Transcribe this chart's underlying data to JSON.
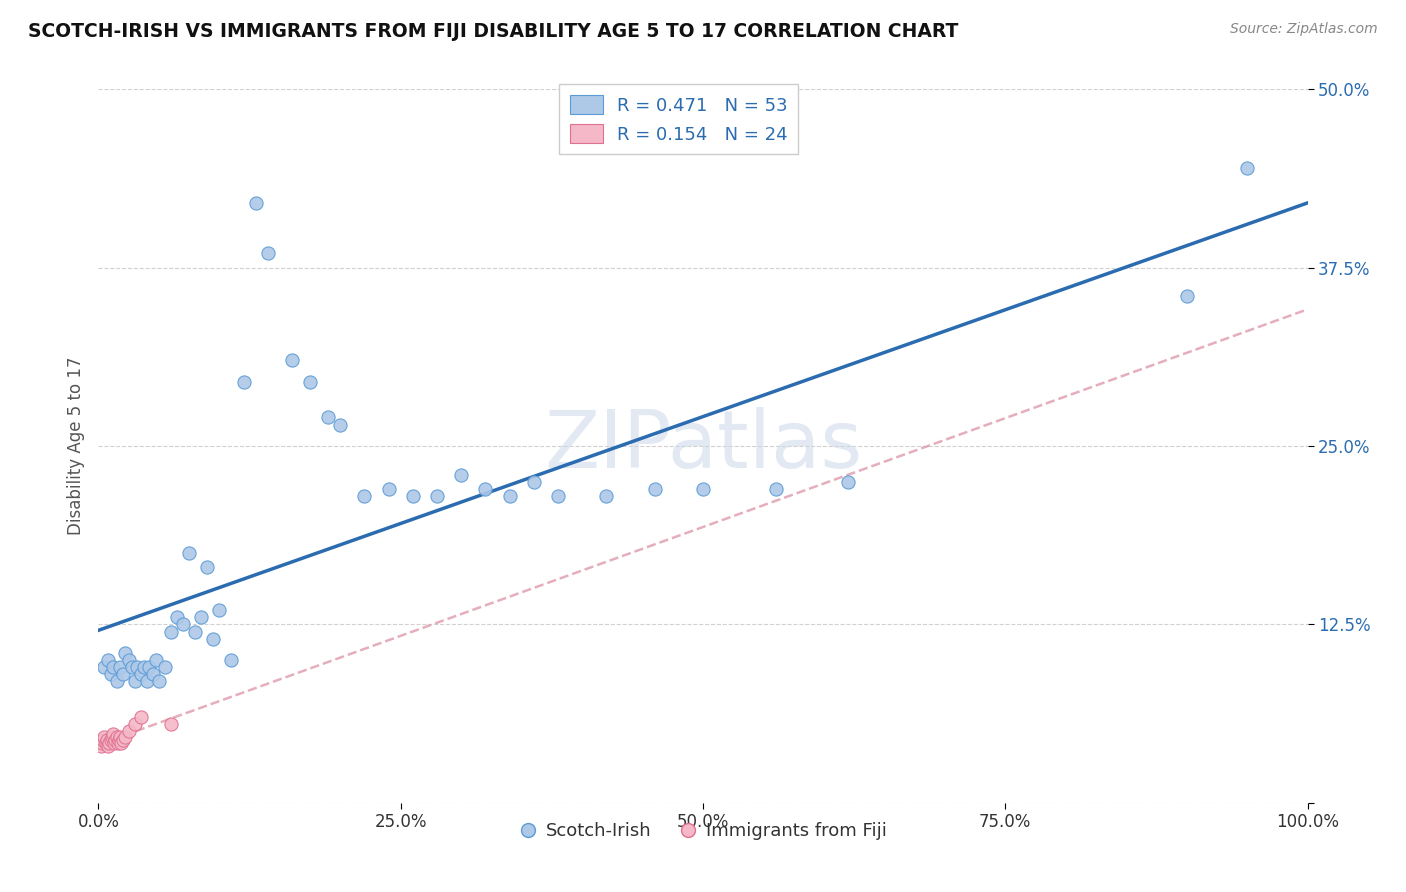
{
  "title": "SCOTCH-IRISH VS IMMIGRANTS FROM FIJI DISABILITY AGE 5 TO 17 CORRELATION CHART",
  "source_text": "Source: ZipAtlas.com",
  "ylabel": "Disability Age 5 to 17",
  "R_blue": 0.471,
  "N_blue": 53,
  "R_pink": 0.154,
  "N_pink": 24,
  "blue_color": "#aec8e8",
  "blue_edge_color": "#5b9bd5",
  "pink_color": "#f4b8c8",
  "pink_edge_color": "#e07090",
  "trend_blue_color": "#2b6cb0",
  "trend_pink_color": "#e0a0b0",
  "watermark": "ZIPatlas",
  "xlim": [
    0.0,
    1.0
  ],
  "ylim": [
    0.0,
    0.5
  ],
  "yticks": [
    0.0,
    0.125,
    0.25,
    0.375,
    0.5
  ],
  "ytick_labels": [
    "",
    "12.5%",
    "25.0%",
    "37.5%",
    "50.0%"
  ],
  "xticks": [
    0.0,
    0.25,
    0.5,
    0.75,
    1.0
  ],
  "xtick_labels": [
    "0.0%",
    "25.0%",
    "50.0%",
    "75.0%",
    "100.0%"
  ],
  "scotch_irish_x": [
    0.005,
    0.008,
    0.01,
    0.012,
    0.015,
    0.018,
    0.02,
    0.022,
    0.025,
    0.028,
    0.03,
    0.032,
    0.035,
    0.038,
    0.04,
    0.042,
    0.045,
    0.048,
    0.05,
    0.055,
    0.06,
    0.065,
    0.07,
    0.075,
    0.08,
    0.085,
    0.09,
    0.095,
    0.1,
    0.11,
    0.12,
    0.13,
    0.14,
    0.16,
    0.175,
    0.19,
    0.2,
    0.22,
    0.24,
    0.26,
    0.28,
    0.3,
    0.32,
    0.34,
    0.36,
    0.38,
    0.42,
    0.46,
    0.5,
    0.56,
    0.62,
    0.9,
    0.95
  ],
  "scotch_irish_y": [
    0.095,
    0.1,
    0.09,
    0.095,
    0.085,
    0.095,
    0.09,
    0.105,
    0.1,
    0.095,
    0.085,
    0.095,
    0.09,
    0.095,
    0.085,
    0.095,
    0.09,
    0.1,
    0.085,
    0.095,
    0.12,
    0.13,
    0.125,
    0.175,
    0.12,
    0.13,
    0.165,
    0.115,
    0.135,
    0.1,
    0.295,
    0.42,
    0.385,
    0.31,
    0.295,
    0.27,
    0.265,
    0.215,
    0.22,
    0.215,
    0.215,
    0.23,
    0.22,
    0.215,
    0.225,
    0.215,
    0.215,
    0.22,
    0.22,
    0.22,
    0.225,
    0.355,
    0.445
  ],
  "fiji_x": [
    0.002,
    0.003,
    0.004,
    0.005,
    0.006,
    0.007,
    0.008,
    0.009,
    0.01,
    0.011,
    0.012,
    0.013,
    0.014,
    0.015,
    0.016,
    0.017,
    0.018,
    0.019,
    0.02,
    0.022,
    0.025,
    0.03,
    0.035,
    0.06
  ],
  "fiji_y": [
    0.04,
    0.042,
    0.044,
    0.046,
    0.042,
    0.044,
    0.04,
    0.042,
    0.044,
    0.046,
    0.048,
    0.042,
    0.044,
    0.046,
    0.042,
    0.044,
    0.046,
    0.042,
    0.044,
    0.046,
    0.05,
    0.055,
    0.06,
    0.055
  ]
}
